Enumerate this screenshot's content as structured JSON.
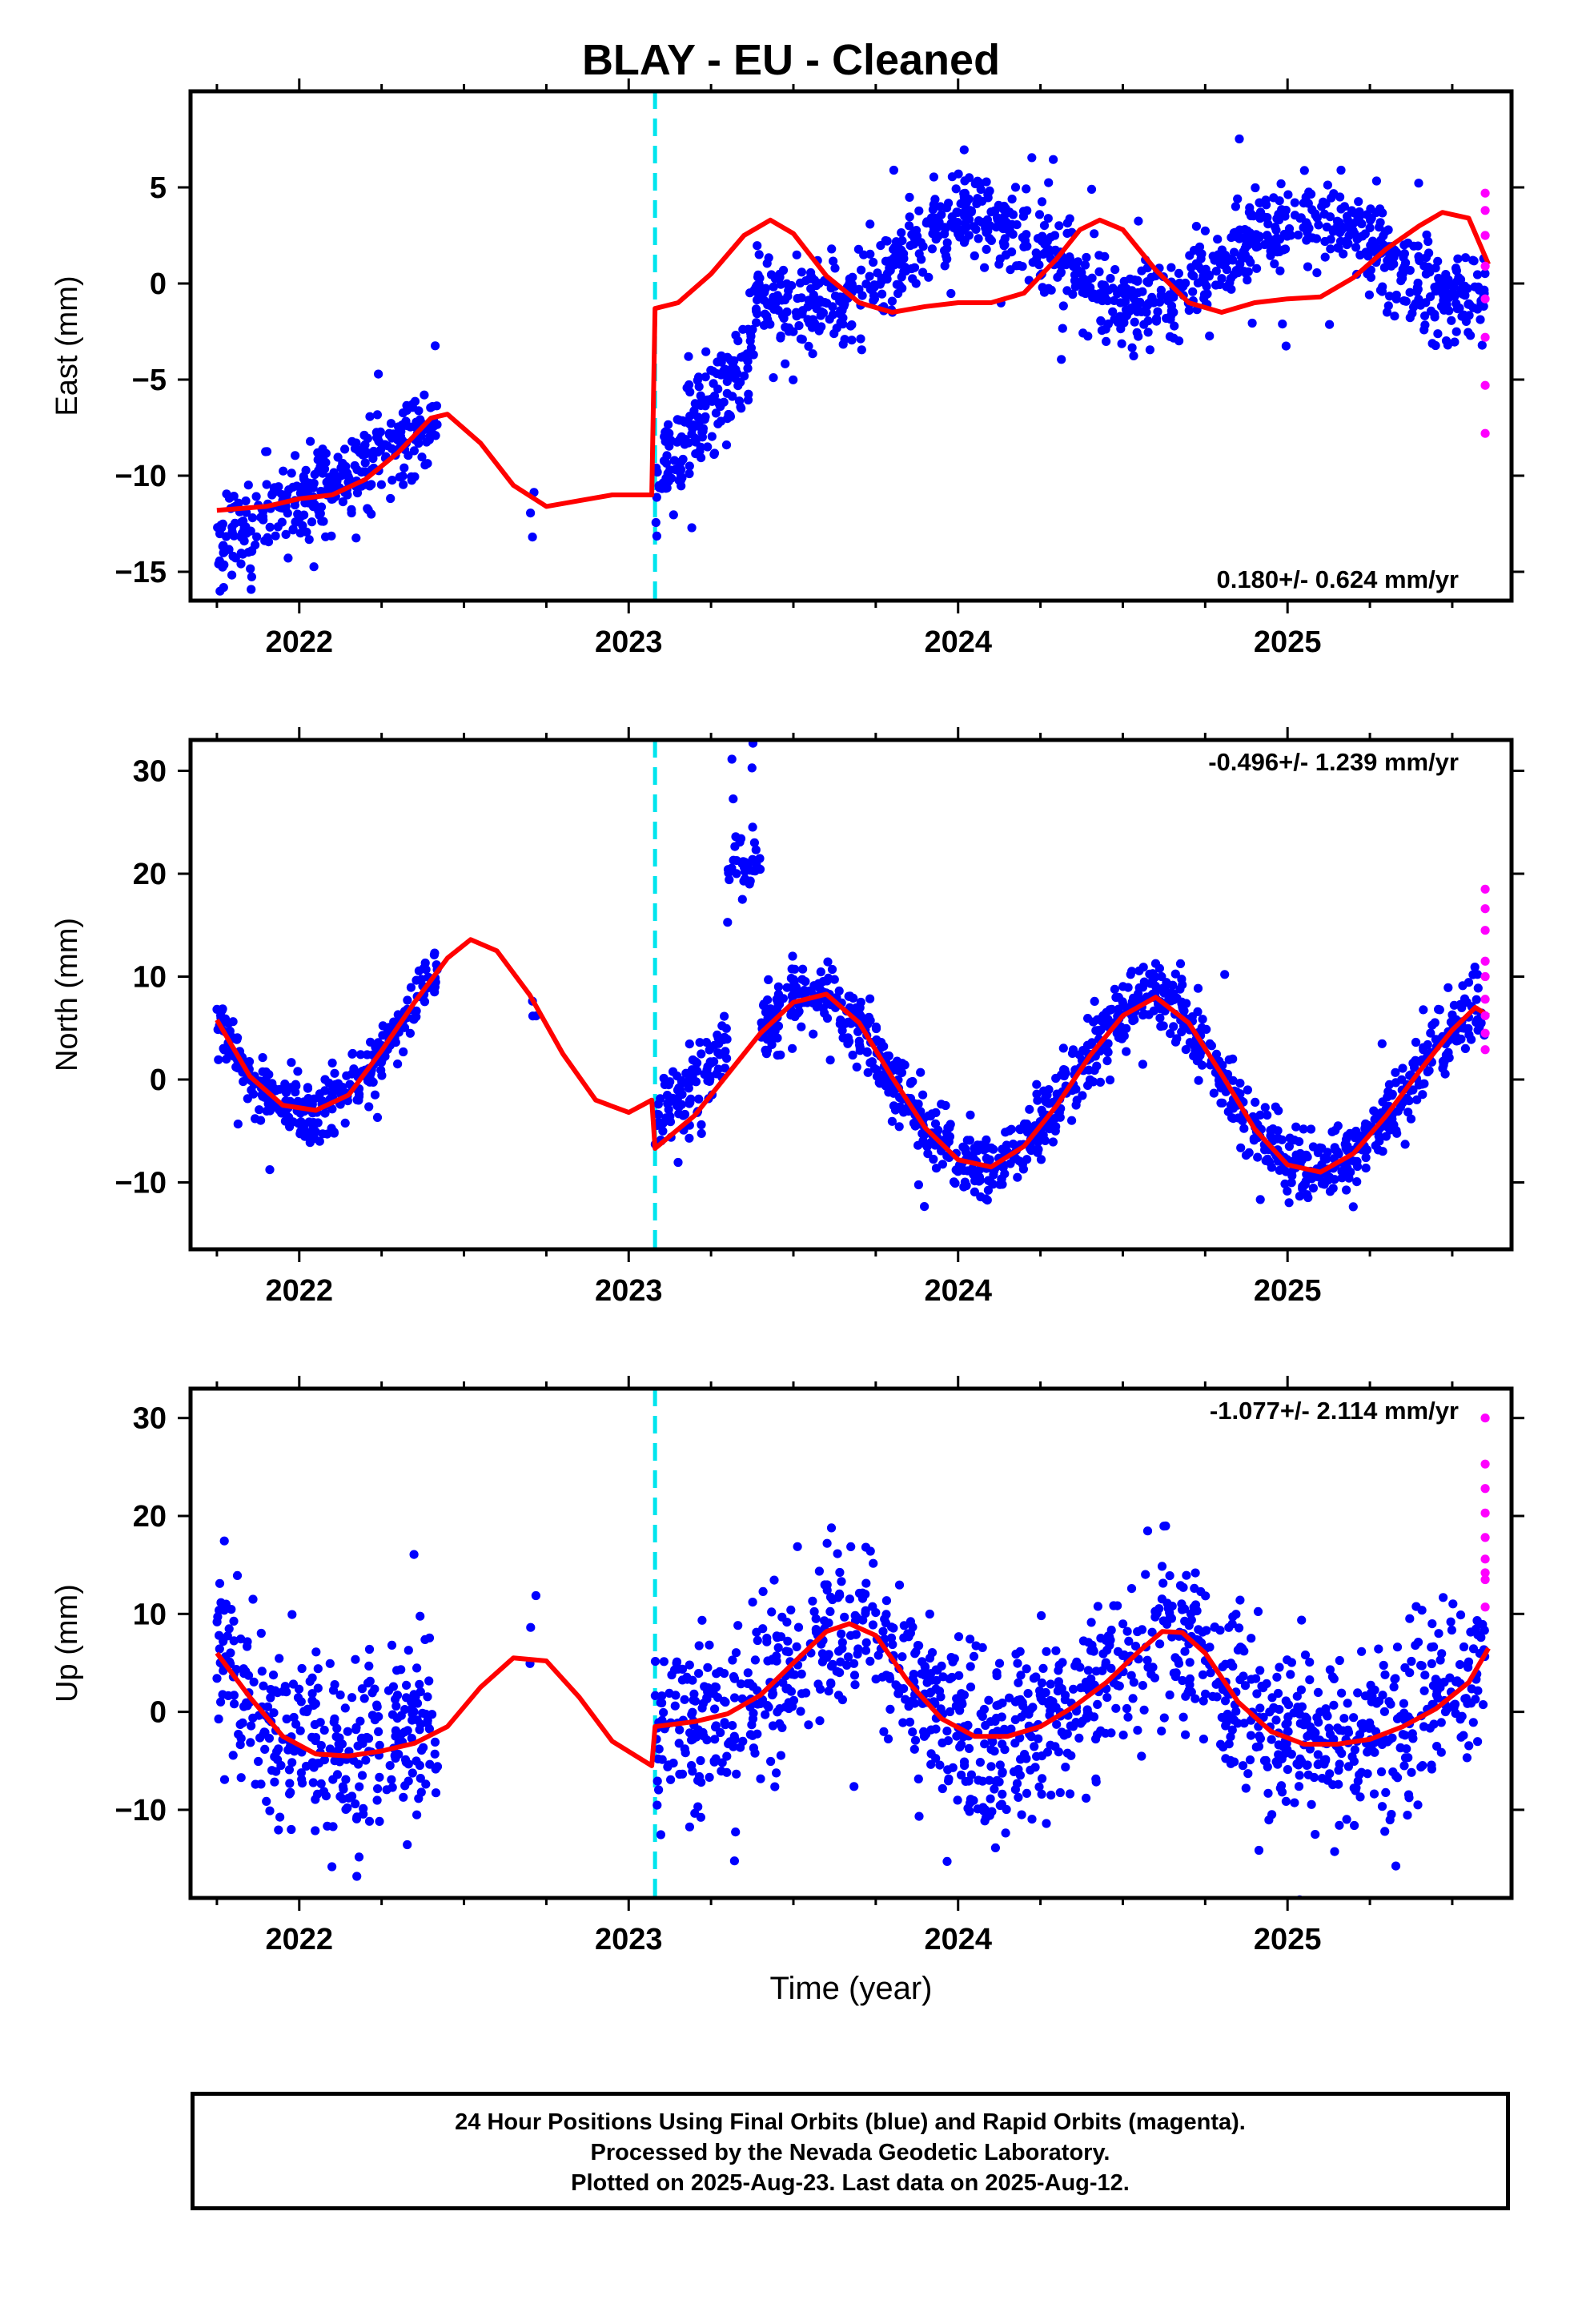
{
  "title": "BLAY  - EU - Cleaned",
  "xlabel": "Time (year)",
  "caption": [
    "24 Hour Positions Using Final Orbits (blue) and Rapid Orbits (magenta).",
    "Processed by the Nevada Geodetic Laboratory.",
    "Plotted on 2025-Aug-23. Last data on 2025-Aug-12."
  ],
  "colors": {
    "final": "#0000ff",
    "rapid": "#ff00ff",
    "model": "#ff0000",
    "break": "#00e5ee"
  },
  "chart_data": [
    {
      "type": "scatter",
      "panel": "east",
      "ylabel": "East (mm)",
      "rate_text": "0.180+/- 0.624 mm/yr",
      "rate_position": "bottom-right",
      "xlim": [
        2021.67,
        2025.68
      ],
      "ylim": [
        -16.5,
        10
      ],
      "xticks": [
        2022,
        2023,
        2024,
        2025
      ],
      "yticks": [
        -15,
        -10,
        -5,
        0,
        5
      ],
      "break_epoch": 2023.08,
      "model": {
        "x": [
          2021.75,
          2021.9,
          2022.0,
          2022.1,
          2022.2,
          2022.3,
          2022.4,
          2022.45,
          2022.55,
          2022.65,
          2022.75,
          2022.85,
          2022.95,
          2023.07,
          2023.08,
          2023.15,
          2023.25,
          2023.35,
          2023.43,
          2023.5,
          2023.6,
          2023.7,
          2023.8,
          2023.9,
          2024.0,
          2024.1,
          2024.2,
          2024.3,
          2024.37,
          2024.43,
          2024.5,
          2024.6,
          2024.7,
          2024.8,
          2024.9,
          2025.0,
          2025.1,
          2025.2,
          2025.3,
          2025.4,
          2025.47,
          2025.55,
          2025.61
        ],
        "y": [
          -11.8,
          -11.6,
          -11.2,
          -11.0,
          -10.2,
          -8.8,
          -7.0,
          -6.8,
          -8.3,
          -10.5,
          -11.6,
          -11.3,
          -11.0,
          -11.0,
          -1.3,
          -1.0,
          0.5,
          2.5,
          3.3,
          2.6,
          0.4,
          -1.0,
          -1.5,
          -1.2,
          -1.0,
          -1.0,
          -0.5,
          1.3,
          2.8,
          3.3,
          2.8,
          0.7,
          -1.0,
          -1.5,
          -1.0,
          -0.8,
          -0.7,
          0.3,
          1.8,
          3.0,
          3.7,
          3.4,
          1.0
        ]
      },
      "rapid": {
        "x": [
          2025.6,
          2025.6,
          2025.6,
          2025.6,
          2025.6,
          2025.6,
          2025.6,
          2025.6
        ],
        "y": [
          4.7,
          3.8,
          2.5,
          0.9,
          -0.8,
          -2.8,
          -5.3,
          -7.8
        ]
      },
      "final_segments": [
        {
          "x0": 2021.75,
          "x1": 2022.42,
          "n": 330,
          "offset": -13.8,
          "trend": 10.0,
          "amp": 0.0,
          "phase": 0.0,
          "noise": 1.1,
          "out_amp": 2.0,
          "out_prob": 0.03
        },
        {
          "x0": 2022.7,
          "x1": 2022.72,
          "n": 3,
          "offset": -11.0,
          "trend": 0,
          "amp": 0,
          "phase": 0,
          "noise": 1.2,
          "out_amp": 0,
          "out_prob": 0
        },
        {
          "x0": 2023.08,
          "x1": 2023.38,
          "n": 170,
          "offset": -10.5,
          "trend": 24.0,
          "amp": 0.0,
          "phase": 0.0,
          "noise": 1.3,
          "out_amp": 3.0,
          "out_prob": 0.04
        },
        {
          "x0": 2023.38,
          "x1": 2025.6,
          "n": 1050,
          "offset": 0.9,
          "trend": 0.2,
          "amp": 2.3,
          "phase": 1.2,
          "noise": 1.1,
          "out_amp": 3.0,
          "out_prob": 0.03
        }
      ]
    },
    {
      "type": "scatter",
      "panel": "north",
      "ylabel": "North (mm)",
      "rate_text": "-0.496+/- 1.239 mm/yr",
      "rate_position": "top-right",
      "xlim": [
        2021.67,
        2025.68
      ],
      "ylim": [
        -16.5,
        33
      ],
      "xticks": [
        2022,
        2023,
        2024,
        2025
      ],
      "yticks": [
        -10,
        0,
        10,
        20,
        30
      ],
      "break_epoch": 2023.08,
      "model": {
        "x": [
          2021.75,
          2021.85,
          2021.95,
          2022.05,
          2022.15,
          2022.25,
          2022.35,
          2022.45,
          2022.52,
          2022.6,
          2022.7,
          2022.8,
          2022.9,
          2023.0,
          2023.07,
          2023.08,
          2023.2,
          2023.3,
          2023.4,
          2023.5,
          2023.6,
          2023.7,
          2023.8,
          2023.9,
          2024.0,
          2024.1,
          2024.2,
          2024.3,
          2024.4,
          2024.5,
          2024.6,
          2024.7,
          2024.8,
          2024.9,
          2025.0,
          2025.1,
          2025.2,
          2025.3,
          2025.4,
          2025.5,
          2025.57,
          2025.61
        ],
        "y": [
          5.8,
          0.3,
          -2.5,
          -3.0,
          -1.5,
          2.8,
          7.5,
          11.8,
          13.6,
          12.5,
          8.2,
          2.5,
          -2.0,
          -3.2,
          -2.0,
          -6.7,
          -3.5,
          0.5,
          4.5,
          7.5,
          8.3,
          5.5,
          0.2,
          -4.7,
          -7.8,
          -8.5,
          -6.5,
          -2.5,
          2.3,
          6.2,
          8.0,
          5.5,
          0.5,
          -4.8,
          -8.3,
          -9.0,
          -7.2,
          -3.5,
          0.8,
          4.8,
          7.0,
          6.2
        ]
      },
      "rapid": {
        "x": [
          2025.6,
          2025.6,
          2025.6,
          2025.6,
          2025.6,
          2025.6,
          2025.6,
          2025.6,
          2025.6
        ],
        "y": [
          18.5,
          16.6,
          14.5,
          11.5,
          10.0,
          7.8,
          6.2,
          4.5,
          2.9
        ]
      },
      "final_segments": [
        {
          "x0": 2021.75,
          "x1": 2022.42,
          "n": 330,
          "offset": 15.0,
          "trend": 0.0,
          "amp": 9.0,
          "phase": 0.0,
          "noise": 1.4,
          "out_amp": 3.0,
          "out_prob": 0.03,
          "model_follow": true
        },
        {
          "x0": 2022.7,
          "x1": 2022.72,
          "n": 3,
          "offset": 7.0,
          "trend": 0,
          "amp": 0,
          "phase": 0,
          "noise": 1.0,
          "out_amp": 0,
          "out_prob": 0
        },
        {
          "x0": 2023.08,
          "x1": 2023.3,
          "n": 110,
          "offset": 0,
          "trend": 0,
          "amp": 0,
          "phase": 0,
          "noise": 2.0,
          "out_amp": 3.0,
          "out_prob": 0.04,
          "model_follow": true,
          "bias": 3.0
        },
        {
          "x0": 2023.3,
          "x1": 2023.4,
          "n": 40,
          "offset": 21.0,
          "trend": 0,
          "amp": 0,
          "phase": 0,
          "noise": 1.3,
          "out_amp": 6.0,
          "out_prob": 0.25
        },
        {
          "x0": 2023.4,
          "x1": 2025.6,
          "n": 1050,
          "offset": 0,
          "trend": 0,
          "amp": 0,
          "phase": 0,
          "noise": 1.7,
          "out_amp": 3.0,
          "out_prob": 0.03,
          "model_follow": true
        }
      ]
    },
    {
      "type": "scatter",
      "panel": "up",
      "ylabel": "Up (mm)",
      "rate_text": "-1.077+/- 2.114 mm/yr",
      "rate_position": "top-right",
      "xlim": [
        2021.67,
        2025.68
      ],
      "ylim": [
        -19,
        33
      ],
      "xticks": [
        2022,
        2023,
        2024,
        2025
      ],
      "yticks": [
        -10,
        0,
        10,
        20,
        30
      ],
      "break_epoch": 2023.08,
      "model": {
        "x": [
          2021.75,
          2021.85,
          2021.95,
          2022.05,
          2022.15,
          2022.25,
          2022.35,
          2022.45,
          2022.55,
          2022.65,
          2022.75,
          2022.85,
          2022.95,
          2023.07,
          2023.08,
          2023.2,
          2023.3,
          2023.4,
          2023.5,
          2023.6,
          2023.67,
          2023.75,
          2023.85,
          2023.95,
          2024.05,
          2024.15,
          2024.25,
          2024.35,
          2024.45,
          2024.55,
          2024.62,
          2024.68,
          2024.75,
          2024.85,
          2024.95,
          2025.05,
          2025.15,
          2025.25,
          2025.35,
          2025.45,
          2025.55,
          2025.61
        ],
        "y": [
          6.0,
          1.5,
          -2.5,
          -4.3,
          -4.5,
          -4.0,
          -3.2,
          -1.5,
          2.5,
          5.5,
          5.2,
          1.5,
          -3.0,
          -5.5,
          -1.5,
          -1.0,
          -0.2,
          1.7,
          5.0,
          8.2,
          9.0,
          7.8,
          3.0,
          -0.7,
          -2.5,
          -2.5,
          -1.5,
          0.5,
          3.0,
          6.2,
          8.2,
          8.1,
          6.0,
          1.0,
          -2.0,
          -3.3,
          -3.3,
          -2.8,
          -1.5,
          0.3,
          3.0,
          6.5
        ]
      },
      "rapid": {
        "x": [
          2025.6,
          2025.6,
          2025.6,
          2025.6,
          2025.6,
          2025.6,
          2025.6,
          2025.6,
          2025.6
        ],
        "y": [
          30.0,
          25.3,
          22.8,
          20.3,
          17.8,
          15.6,
          14.2,
          13.5,
          10.7
        ]
      },
      "final_segments": [
        {
          "x0": 2021.75,
          "x1": 2022.42,
          "n": 330,
          "offset": 0,
          "trend": 0,
          "amp": 0,
          "phase": 0,
          "noise": 4.5,
          "out_amp": 4.0,
          "out_prob": 0.04,
          "model_follow": true
        },
        {
          "x0": 2022.7,
          "x1": 2022.72,
          "n": 3,
          "offset": 7.0,
          "trend": 0,
          "amp": 0,
          "phase": 0,
          "noise": 2.0,
          "out_amp": 0,
          "out_prob": 0
        },
        {
          "x0": 2023.08,
          "x1": 2025.6,
          "n": 1200,
          "offset": 0,
          "trend": 0,
          "amp": 0,
          "phase": 0,
          "noise": 4.3,
          "out_amp": 6.0,
          "out_prob": 0.05,
          "model_follow": true
        }
      ]
    }
  ]
}
